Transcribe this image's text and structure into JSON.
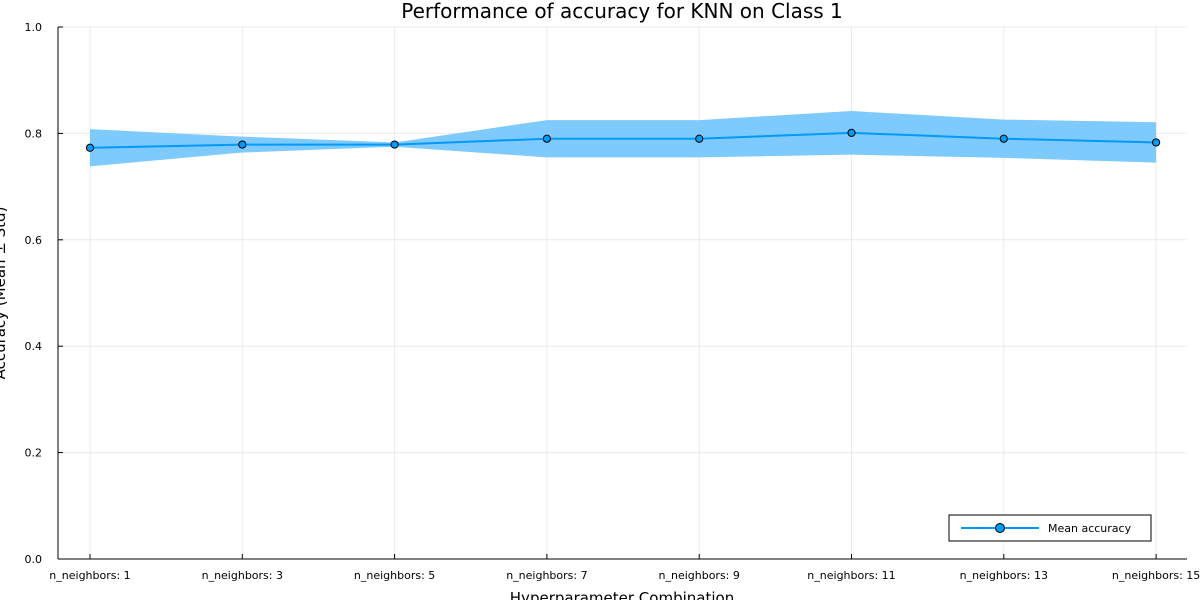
{
  "chart_data": {
    "type": "line",
    "title": "Performance of accuracy for KNN on Class 1",
    "xlabel": "Hyperparameter Combination",
    "ylabel": "Accuracy (Mean ± Std)",
    "categories": [
      "n_neighbors: 1",
      "n_neighbors: 3",
      "n_neighbors: 5",
      "n_neighbors: 7",
      "n_neighbors: 9",
      "n_neighbors: 11",
      "n_neighbors: 13",
      "n_neighbors: 15"
    ],
    "series": [
      {
        "name": "Mean accuracy",
        "values": [
          0.773,
          0.779,
          0.779,
          0.79,
          0.79,
          0.801,
          0.79,
          0.783
        ],
        "std": [
          0.035,
          0.015,
          0.004,
          0.035,
          0.035,
          0.041,
          0.036,
          0.038
        ]
      }
    ],
    "ylim": [
      0,
      1
    ],
    "yticks": [
      "0.0",
      "0.2",
      "0.4",
      "0.6",
      "0.8",
      "1.0"
    ],
    "grid": true,
    "legend_position": "bottom-right",
    "colors": {
      "line": "#009af9",
      "band": "#7fcafc",
      "marker_edge": "#000000"
    }
  }
}
